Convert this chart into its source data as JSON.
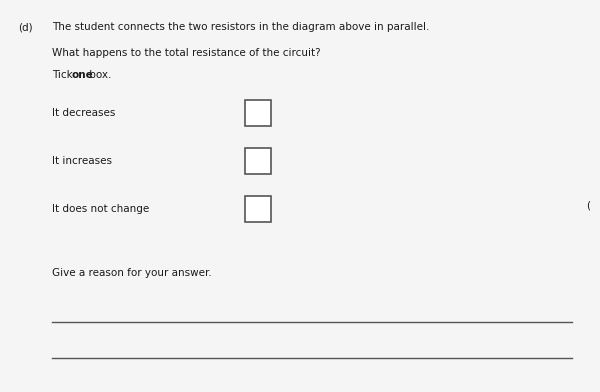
{
  "background_color": "#f5f5f5",
  "text_color": "#1a1a1a",
  "title_d": "(d)",
  "title_text": "The student connects the two resistors in the diagram above in parallel.",
  "subtitle": "What happens to the total resistance of the circuit?",
  "tick_pre": "Tick ",
  "tick_bold": "one",
  "tick_post": " box.",
  "options": [
    "It decreases",
    "It increases",
    "It does not change"
  ],
  "reason_label": "Give a reason for your answer.",
  "box_color": "white",
  "box_edge_color": "#555555",
  "line_color": "#555555",
  "right_label": "(",
  "font_size": 7.5,
  "font_family": "DejaVu Sans"
}
